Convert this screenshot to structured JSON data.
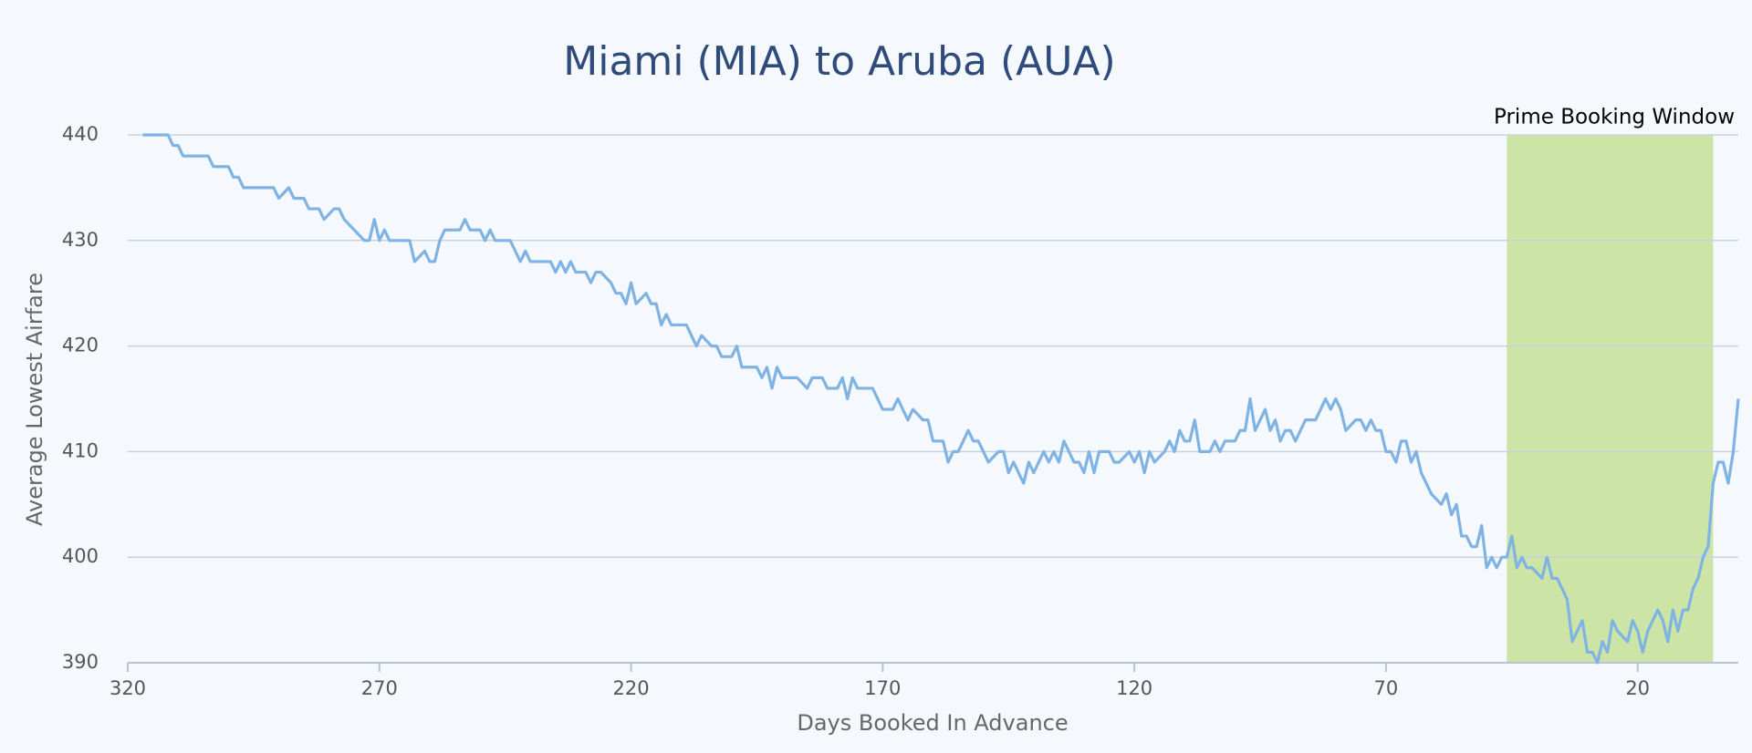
{
  "chart_data": {
    "type": "line",
    "title": "Miami (MIA) to Aruba (AUA)",
    "x_label": "Days Booked In Advance",
    "y_label": "Average Lowest Airfare",
    "xlim": [
      320,
      0
    ],
    "ylim": [
      390,
      440
    ],
    "xticks": [
      320,
      270,
      220,
      170,
      120,
      70,
      20
    ],
    "yticks": [
      390,
      400,
      410,
      420,
      430,
      440
    ],
    "grid": true,
    "shaded_region": {
      "label": "Prime Booking Window",
      "x": [
        46,
        5
      ],
      "color": "#cde4a7"
    },
    "x": [
      317,
      312,
      311,
      310,
      309,
      304,
      303,
      300,
      299,
      298,
      297,
      291,
      290,
      288,
      287,
      285,
      284,
      282,
      281,
      279,
      278,
      277,
      275,
      273,
      272,
      271,
      270,
      269,
      268,
      264,
      263,
      261,
      260,
      259,
      258,
      257,
      254,
      253,
      252,
      250,
      249,
      248,
      247,
      244,
      243,
      242,
      241,
      240,
      236,
      235,
      234,
      233,
      232,
      231,
      229,
      228,
      227,
      226,
      224,
      223,
      222,
      221,
      220,
      219,
      217,
      216,
      215,
      214,
      213,
      212,
      209,
      208,
      207,
      206,
      204,
      203,
      202,
      200,
      199,
      198,
      195,
      194,
      193,
      192,
      191,
      190,
      189,
      187,
      185,
      184,
      182,
      181,
      179,
      178,
      177,
      176,
      175,
      172,
      170,
      168,
      167,
      165,
      164,
      162,
      161,
      160,
      158,
      157,
      156,
      155,
      154,
      153,
      152,
      151,
      149,
      147,
      146,
      145,
      144,
      142,
      141,
      140,
      138,
      137,
      136,
      135,
      134,
      132,
      131,
      130,
      129,
      128,
      127,
      125,
      124,
      123,
      121,
      120,
      119,
      118,
      117,
      116,
      114,
      113,
      112,
      111,
      110,
      109,
      108,
      107,
      105,
      104,
      103,
      102,
      100,
      99,
      98,
      97,
      96,
      94,
      93,
      92,
      91,
      90,
      89,
      88,
      87,
      86,
      84,
      82,
      81,
      80,
      79,
      78,
      76,
      75,
      74,
      73,
      72,
      71,
      70,
      69,
      68,
      67,
      66,
      65,
      64,
      63,
      62,
      61,
      59,
      58,
      57,
      56,
      55,
      54,
      53,
      52,
      51,
      50,
      49,
      48,
      47,
      46,
      45,
      44,
      43,
      42,
      41,
      39,
      38,
      37,
      36,
      35,
      34,
      33,
      31,
      30,
      29,
      28,
      27,
      26,
      25,
      24,
      22,
      21,
      20,
      19,
      18,
      16,
      15,
      14,
      13,
      12,
      11,
      10,
      9,
      8,
      7,
      6,
      5,
      4,
      3,
      2,
      1,
      0
    ],
    "series": [
      {
        "name": "Average Lowest Airfare",
        "color": "#7fb3e4",
        "values": [
          440,
          440,
          439,
          439,
          438,
          438,
          437,
          437,
          436,
          436,
          435,
          435,
          434,
          435,
          434,
          434,
          433,
          433,
          432,
          433,
          433,
          432,
          431,
          430,
          430,
          432,
          430,
          431,
          430,
          430,
          428,
          429,
          428,
          428,
          430,
          431,
          431,
          432,
          431,
          431,
          430,
          431,
          430,
          430,
          429,
          428,
          429,
          428,
          428,
          427,
          428,
          427,
          428,
          427,
          427,
          426,
          427,
          427,
          426,
          425,
          425,
          424,
          426,
          424,
          425,
          424,
          424,
          422,
          423,
          422,
          422,
          421,
          420,
          421,
          420,
          420,
          419,
          419,
          420,
          418,
          418,
          417,
          418,
          416,
          418,
          417,
          417,
          417,
          416,
          417,
          417,
          416,
          416,
          417,
          415,
          417,
          416,
          416,
          414,
          414,
          415,
          413,
          414,
          413,
          413,
          411,
          411,
          409,
          410,
          410,
          411,
          412,
          411,
          411,
          409,
          410,
          410,
          408,
          409,
          407,
          409,
          408,
          410,
          409,
          410,
          409,
          411,
          409,
          409,
          408,
          410,
          408,
          410,
          410,
          409,
          409,
          410,
          409,
          410,
          408,
          410,
          409,
          410,
          411,
          410,
          412,
          411,
          411,
          413,
          410,
          410,
          411,
          410,
          411,
          411,
          412,
          412,
          415,
          412,
          414,
          412,
          413,
          411,
          412,
          412,
          411,
          412,
          413,
          413,
          415,
          414,
          415,
          414,
          412,
          413,
          413,
          412,
          413,
          412,
          412,
          410,
          410,
          409,
          411,
          411,
          409,
          410,
          408,
          407,
          406,
          405,
          406,
          404,
          405,
          402,
          402,
          401,
          401,
          403,
          399,
          400,
          399,
          400,
          400,
          402,
          399,
          400,
          399,
          399,
          398,
          400,
          398,
          398,
          397,
          396,
          392,
          394,
          391,
          391,
          390,
          392,
          391,
          394,
          393,
          392,
          394,
          393,
          391,
          393,
          395,
          394,
          392,
          395,
          393,
          395,
          395,
          397,
          398,
          400,
          401,
          407,
          409,
          409,
          407,
          410,
          415
        ]
      }
    ]
  }
}
